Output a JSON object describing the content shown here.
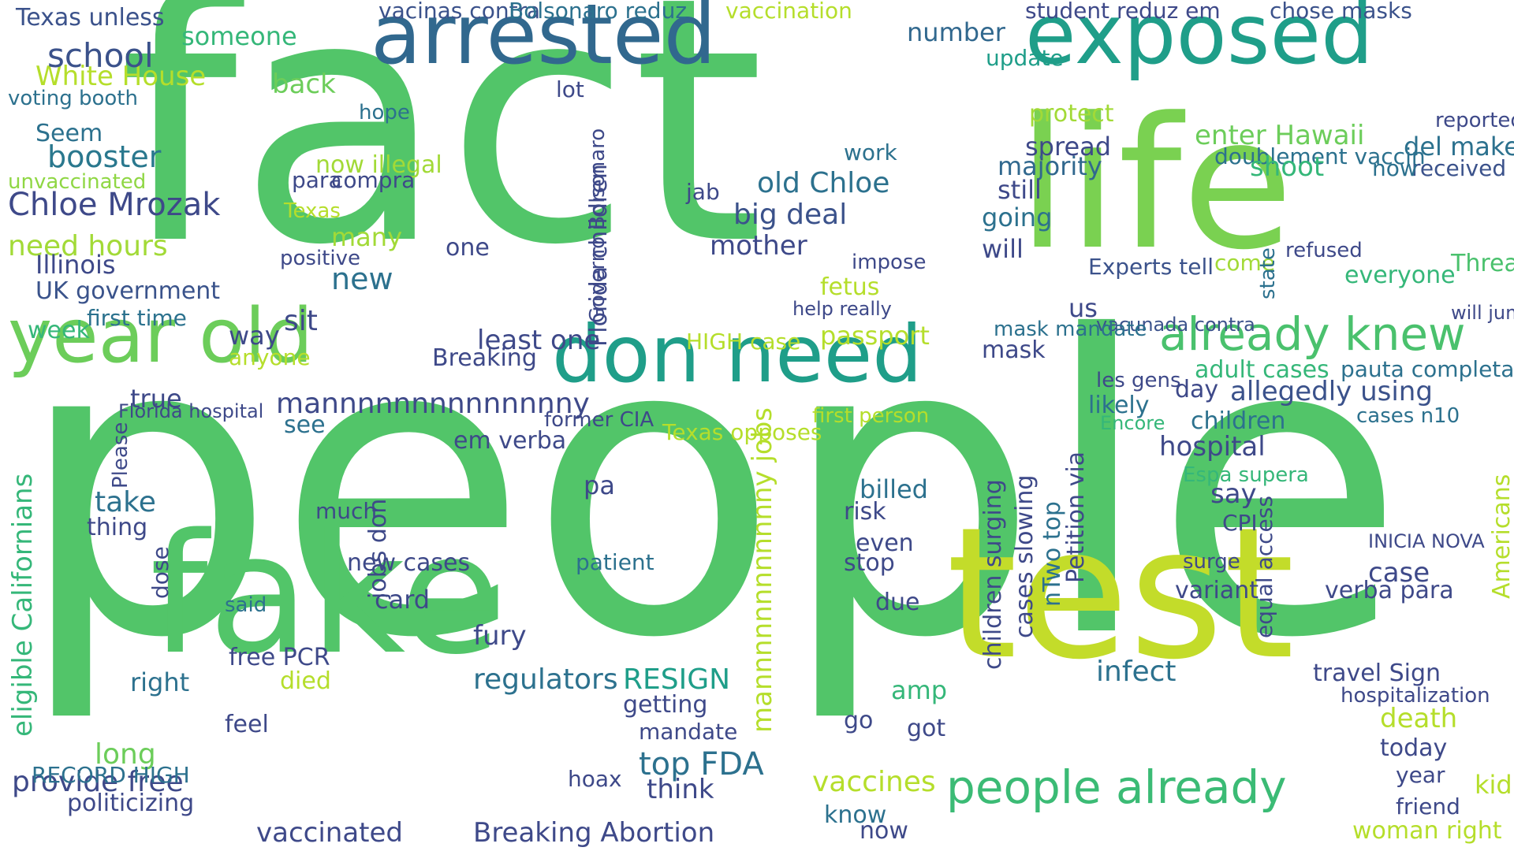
{
  "palette": {
    "background": "#ffffff",
    "lime": "#c3dc2a",
    "green": "#52c569",
    "teal": "#1f9e89",
    "blue": "#2c718e",
    "indigo": "#3e4989",
    "purple": "#482878"
  },
  "words": [
    {
      "text": "fact",
      "color": "#52c569"
    },
    {
      "text": "people",
      "color": "#52c569"
    },
    {
      "text": "arrested",
      "color": "#31688e"
    },
    {
      "text": "exposed",
      "color": "#1f9e89"
    },
    {
      "text": "life",
      "color": "#7ad151"
    },
    {
      "text": "test",
      "color": "#c3dc2a"
    },
    {
      "text": "fake",
      "color": "#52c569"
    },
    {
      "text": "don need",
      "color": "#1f9e89"
    },
    {
      "text": "year old",
      "color": "#6ccd5a"
    },
    {
      "text": "already knew",
      "color": "#4ac16d"
    },
    {
      "text": "people already",
      "color": "#3bbb75"
    },
    {
      "text": "Chloe Mrozak",
      "color": "#3e4989"
    },
    {
      "text": "White House",
      "color": "#b5de2b"
    },
    {
      "text": "school",
      "color": "#3b528b"
    },
    {
      "text": "booster",
      "color": "#2a788e"
    },
    {
      "text": "Seem",
      "color": "#2c718e"
    },
    {
      "text": "need hours",
      "color": "#a2da37"
    },
    {
      "text": "Illinois",
      "color": "#3e4989"
    },
    {
      "text": "UK government",
      "color": "#3a538b"
    },
    {
      "text": "first time",
      "color": "#2c728e"
    },
    {
      "text": "true",
      "color": "#3e4989"
    },
    {
      "text": "Texas unless",
      "color": "#3b528b"
    },
    {
      "text": "voting booth",
      "color": "#2c718e"
    },
    {
      "text": "unvaccinated",
      "color": "#8fd744"
    },
    {
      "text": "vacinas contra",
      "color": "#3b528b"
    },
    {
      "text": "Bolsonaro reduz",
      "color": "#2c718e"
    },
    {
      "text": "vaccination",
      "color": "#b5de2b"
    },
    {
      "text": "student reduz em",
      "color": "#3e4989"
    },
    {
      "text": "chose masks",
      "color": "#3b528b"
    },
    {
      "text": "someone",
      "color": "#35b779"
    },
    {
      "text": "number",
      "color": "#31688e"
    },
    {
      "text": "update",
      "color": "#1f9e89"
    },
    {
      "text": "back",
      "color": "#6ccd5a"
    },
    {
      "text": "hope",
      "color": "#2c718e"
    },
    {
      "text": "lot",
      "color": "#3e4989"
    },
    {
      "text": "protect",
      "color": "#a2da37"
    },
    {
      "text": "enter Hawaii",
      "color": "#6ccd5a"
    },
    {
      "text": "doublement vaccin",
      "color": "#2c718e"
    },
    {
      "text": "reported",
      "color": "#3e4989"
    },
    {
      "text": "del make",
      "color": "#2c718e"
    },
    {
      "text": "shoot",
      "color": "#35b779"
    },
    {
      "text": "spread",
      "color": "#3e4989"
    },
    {
      "text": "received",
      "color": "#3b528b"
    },
    {
      "text": "now",
      "color": "#2c718e"
    },
    {
      "text": "majority",
      "color": "#31688e"
    },
    {
      "text": "work",
      "color": "#2c718e"
    },
    {
      "text": "now illegal",
      "color": "#a2da37"
    },
    {
      "text": "compra",
      "color": "#3e4989"
    },
    {
      "text": "para",
      "color": "#3e4989"
    },
    {
      "text": "old Chloe",
      "color": "#2c718e"
    },
    {
      "text": "big deal",
      "color": "#3b528b"
    },
    {
      "text": "mother",
      "color": "#3e4989"
    },
    {
      "text": "jab",
      "color": "#3e4989"
    },
    {
      "text": "still",
      "color": "#3e4989"
    },
    {
      "text": "going",
      "color": "#2c718e"
    },
    {
      "text": "will",
      "color": "#3e4989"
    },
    {
      "text": "Experts tell",
      "color": "#3b528b"
    },
    {
      "text": "come",
      "color": "#a2da37"
    },
    {
      "text": "refused",
      "color": "#3e4989"
    },
    {
      "text": "Thread",
      "color": "#4ac16d"
    },
    {
      "text": "everyone",
      "color": "#35b779"
    },
    {
      "text": "will jump",
      "color": "#3e4989"
    },
    {
      "text": "Texas",
      "color": "#b5de2b"
    },
    {
      "text": "many",
      "color": "#a2da37"
    },
    {
      "text": "new",
      "color": "#2c718e"
    },
    {
      "text": "positive",
      "color": "#3e4989"
    },
    {
      "text": "one",
      "color": "#3e4989"
    },
    {
      "text": "fetus",
      "color": "#b5de2b"
    },
    {
      "text": "impose",
      "color": "#3e4989"
    },
    {
      "text": "help really",
      "color": "#3e4989"
    },
    {
      "text": "us",
      "color": "#3e4989"
    },
    {
      "text": "vacunada contra",
      "color": "#3b528b"
    },
    {
      "text": "mask mandate",
      "color": "#2c718e"
    },
    {
      "text": "mask",
      "color": "#3e4989"
    },
    {
      "text": "passport",
      "color": "#b5de2b"
    },
    {
      "text": "HIGH case",
      "color": "#b5de2b"
    },
    {
      "text": "least one",
      "color": "#3e4989"
    },
    {
      "text": "Breaking",
      "color": "#3e4989"
    },
    {
      "text": "sit",
      "color": "#3e4989"
    },
    {
      "text": "way",
      "color": "#3e4989"
    },
    {
      "text": "anyone",
      "color": "#b5de2b"
    },
    {
      "text": "week",
      "color": "#35b779"
    },
    {
      "text": "mannnnnnnnnnnnnny",
      "color": "#3e4989"
    },
    {
      "text": "allegedly using",
      "color": "#3b528b"
    },
    {
      "text": "day",
      "color": "#3e4989"
    },
    {
      "text": "adult cases",
      "color": "#35b779"
    },
    {
      "text": "pauta completa",
      "color": "#2c718e"
    },
    {
      "text": "les gens",
      "color": "#3e4989"
    },
    {
      "text": "likely",
      "color": "#2c718e"
    },
    {
      "text": "Encore",
      "color": "#35b779"
    },
    {
      "text": "children",
      "color": "#2c718e"
    },
    {
      "text": "hospital",
      "color": "#3e4989"
    },
    {
      "text": "cases n10",
      "color": "#2c718e"
    },
    {
      "text": "Texas opposes",
      "color": "#b5de2b"
    },
    {
      "text": "first person",
      "color": "#b5de2b"
    },
    {
      "text": "former CIA",
      "color": "#3e4989"
    },
    {
      "text": "em verba",
      "color": "#3e4989"
    },
    {
      "text": "see",
      "color": "#2c718e"
    },
    {
      "text": "Florida hospital",
      "color": "#3e4989"
    },
    {
      "text": "Please",
      "color": "#3e4989"
    },
    {
      "text": "take",
      "color": "#2c718e"
    },
    {
      "text": "thing",
      "color": "#3e4989"
    },
    {
      "text": "pa",
      "color": "#3e4989"
    },
    {
      "text": "billed",
      "color": "#2c718e"
    },
    {
      "text": "risk",
      "color": "#3e4989"
    },
    {
      "text": "much",
      "color": "#3e4989"
    },
    {
      "text": "say",
      "color": "#3e4989"
    },
    {
      "text": "CPI",
      "color": "#3e4989"
    },
    {
      "text": "Espa supera",
      "color": "#35b779"
    },
    {
      "text": "new cases",
      "color": "#3e4989"
    },
    {
      "text": "patient",
      "color": "#2c718e"
    },
    {
      "text": "even",
      "color": "#3e4989"
    },
    {
      "text": "stop",
      "color": "#3e4989"
    },
    {
      "text": "card",
      "color": "#3e4989"
    },
    {
      "text": "due",
      "color": "#3e4989"
    },
    {
      "text": "said",
      "color": "#2c718e"
    },
    {
      "text": "dose",
      "color": "#3e4989"
    },
    {
      "text": "fury",
      "color": "#3e4989"
    },
    {
      "text": "regulators",
      "color": "#2c718e"
    },
    {
      "text": "RESIGN",
      "color": "#1f9e89"
    },
    {
      "text": "variant",
      "color": "#3e4989"
    },
    {
      "text": "surge",
      "color": "#3e4989"
    },
    {
      "text": "case",
      "color": "#3e4989"
    },
    {
      "text": "verba para",
      "color": "#3e4989"
    },
    {
      "text": "INICIA NOVA",
      "color": "#3e4989"
    },
    {
      "text": "right",
      "color": "#2c718e"
    },
    {
      "text": "free PCR",
      "color": "#3e4989"
    },
    {
      "text": "died",
      "color": "#b5de2b"
    },
    {
      "text": "long",
      "color": "#6ccd5a"
    },
    {
      "text": "feel",
      "color": "#3e4989"
    },
    {
      "text": "provide free",
      "color": "#3e4989"
    },
    {
      "text": "RECORD HIGH",
      "color": "#2c718e"
    },
    {
      "text": "politicizing",
      "color": "#3e4989"
    },
    {
      "text": "vaccinated",
      "color": "#3e4989"
    },
    {
      "text": "Breaking Abortion",
      "color": "#3e4989"
    },
    {
      "text": "top FDA",
      "color": "#2c718e"
    },
    {
      "text": "mandate",
      "color": "#3e4989"
    },
    {
      "text": "getting",
      "color": "#3e4989"
    },
    {
      "text": "think",
      "color": "#3e4989"
    },
    {
      "text": "hoax",
      "color": "#3e4989"
    },
    {
      "text": "amp",
      "color": "#35b779"
    },
    {
      "text": "got",
      "color": "#3e4989"
    },
    {
      "text": "go",
      "color": "#3e4989"
    },
    {
      "text": "infect",
      "color": "#2c718e"
    },
    {
      "text": "vaccines",
      "color": "#b5de2b"
    },
    {
      "text": "know",
      "color": "#2c718e"
    },
    {
      "text": "now",
      "color": "#3e4989"
    },
    {
      "text": "travel Sign",
      "color": "#3e4989"
    },
    {
      "text": "hospitalization",
      "color": "#3e4989"
    },
    {
      "text": "death",
      "color": "#b5de2b"
    },
    {
      "text": "today",
      "color": "#3e4989"
    },
    {
      "text": "year",
      "color": "#3e4989"
    },
    {
      "text": "friend",
      "color": "#3e4989"
    },
    {
      "text": "kid",
      "color": "#b5de2b"
    },
    {
      "text": "woman right",
      "color": "#b5de2b"
    },
    {
      "text": "eligible Californians",
      "color": "#35b779"
    },
    {
      "text": "jobs don",
      "color": "#3e4989"
    },
    {
      "text": "Florida children",
      "color": "#3e4989"
    },
    {
      "text": "Governo Bolsonaro",
      "color": "#3e4989"
    },
    {
      "text": "mannnnnnnnnnnny jobs",
      "color": "#b5de2b"
    },
    {
      "text": "children surging",
      "color": "#3e4989"
    },
    {
      "text": "cases slowing",
      "color": "#3e4989"
    },
    {
      "text": "nTwo top",
      "color": "#2c718e"
    },
    {
      "text": "Petition via",
      "color": "#3e4989"
    },
    {
      "text": "state",
      "color": "#2c718e"
    },
    {
      "text": "equal access",
      "color": "#3e4989"
    },
    {
      "text": "Americans",
      "color": "#b5de2b"
    }
  ]
}
